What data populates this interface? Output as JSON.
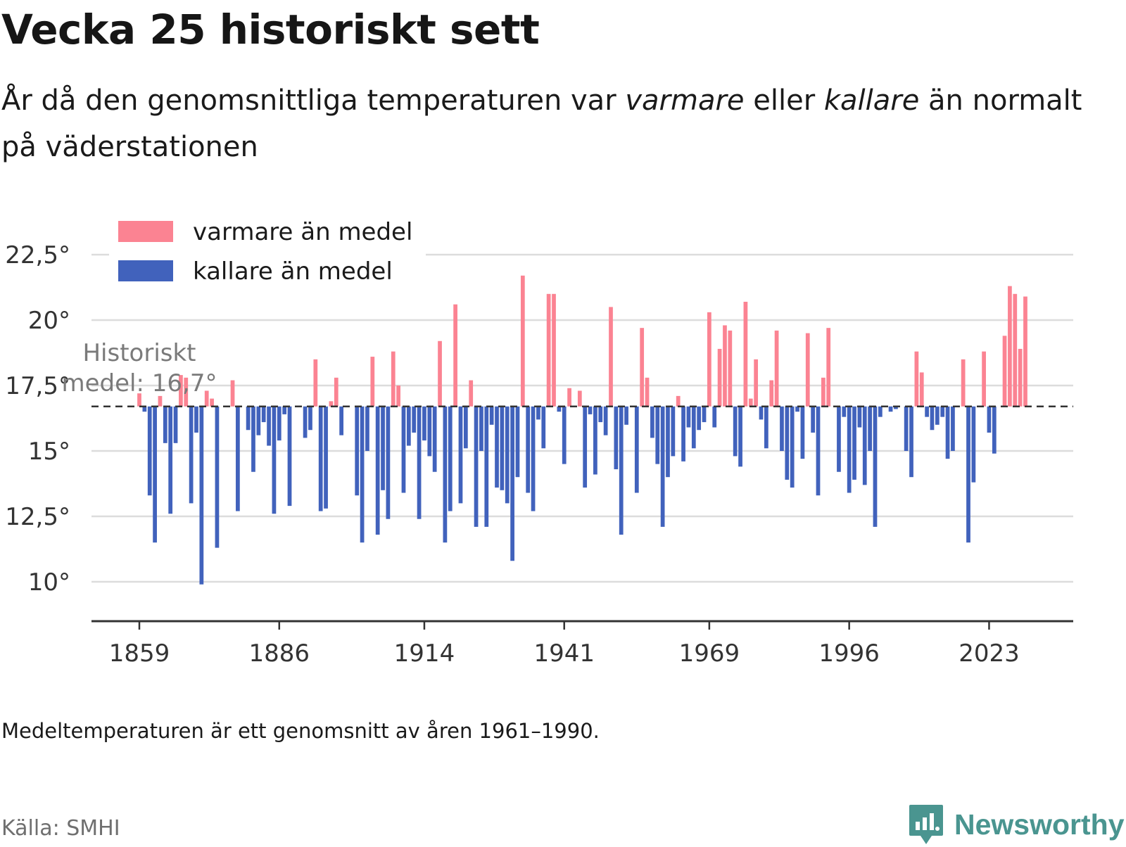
{
  "header": {
    "title": "Vecka 25 historiskt sett",
    "subtitle_a": "År då den genomsnittliga temperaturen var ",
    "subtitle_warm": "varmare",
    "subtitle_b": " eller ",
    "subtitle_cold": "kallare",
    "subtitle_c": " än normalt på väderstationen"
  },
  "footer": {
    "note": "Medeltemperaturen är ett genomsnitt av åren 1961–1990.",
    "source": "Källa: SMHI",
    "brand": "Newsworthy"
  },
  "colors": {
    "warm": "#fb8392",
    "cold": "#4162bc",
    "grid": "#dcdcdc",
    "axis": "#333333",
    "brand": "#4a9590"
  },
  "chart_data": {
    "type": "bar",
    "title": "",
    "xlabel": "",
    "ylabel": "",
    "baseline": 16.7,
    "baseline_label_line1": "Historiskt",
    "baseline_label_line2": "medel: 16,7°",
    "ylim": [
      8.5,
      23.5
    ],
    "y_ticks": [
      10,
      12.5,
      15,
      17.5,
      20,
      22.5
    ],
    "y_tick_labels": [
      "10°",
      "12,5°",
      "15°",
      "17,5°",
      "20°",
      "22,5°"
    ],
    "x_ticks": [
      1859,
      1886,
      1914,
      1941,
      1969,
      1996,
      2023
    ],
    "x_tick_labels": [
      "1859",
      "1886",
      "1914",
      "1941",
      "1969",
      "1996",
      "2023"
    ],
    "legend": [
      {
        "key": "warm",
        "label": "varmare än medel"
      },
      {
        "key": "cold",
        "label": "kallare än medel"
      }
    ],
    "legend_position": "top-left",
    "grid": true,
    "start_year": 1859,
    "values": [
      17.2,
      16.5,
      13.3,
      11.5,
      17.1,
      15.3,
      12.6,
      15.3,
      17.9,
      17.8,
      13.0,
      15.7,
      9.9,
      17.3,
      17.0,
      11.3,
      16.7,
      16.7,
      17.7,
      12.7,
      16.7,
      15.8,
      14.2,
      15.6,
      16.1,
      15.2,
      12.6,
      15.4,
      16.4,
      12.9,
      16.7,
      16.7,
      15.5,
      15.8,
      18.5,
      12.7,
      12.8,
      16.9,
      17.8,
      15.6,
      16.7,
      16.7,
      13.3,
      11.5,
      15.0,
      18.6,
      11.8,
      13.5,
      12.4,
      18.8,
      17.5,
      13.4,
      15.2,
      15.7,
      12.4,
      15.4,
      14.8,
      14.2,
      19.2,
      11.5,
      12.7,
      20.6,
      13.0,
      15.1,
      17.7,
      12.1,
      15.0,
      12.1,
      16.0,
      13.6,
      13.5,
      13.0,
      10.8,
      14.0,
      21.7,
      13.4,
      12.7,
      16.2,
      15.1,
      21.0,
      21.0,
      16.5,
      14.5,
      17.4,
      16.7,
      17.3,
      13.6,
      16.4,
      14.1,
      16.1,
      15.6,
      20.5,
      14.3,
      11.8,
      16.0,
      16.7,
      13.4,
      19.7,
      17.8,
      15.5,
      14.5,
      12.1,
      14.0,
      14.8,
      17.1,
      14.6,
      15.9,
      15.1,
      15.8,
      16.1,
      20.3,
      15.9,
      18.9,
      19.8,
      19.6,
      14.8,
      14.4,
      20.7,
      17.0,
      18.5,
      16.2,
      15.1,
      17.7,
      19.6,
      15.0,
      13.9,
      13.6,
      16.5,
      14.7,
      19.5,
      15.7,
      13.3,
      17.8,
      19.7,
      16.7,
      14.2,
      16.3,
      13.4,
      13.9,
      15.9,
      13.7,
      15.0,
      12.1,
      16.3,
      16.7,
      16.5,
      16.6,
      16.7,
      15.0,
      14.0,
      18.8,
      18.0,
      16.3,
      15.8,
      16.0,
      16.3,
      14.7,
      15.0,
      16.7,
      18.5,
      11.5,
      13.8,
      16.7,
      18.8,
      15.7,
      14.9,
      16.7,
      19.4,
      21.3,
      21.0,
      18.9,
      20.9
    ]
  }
}
